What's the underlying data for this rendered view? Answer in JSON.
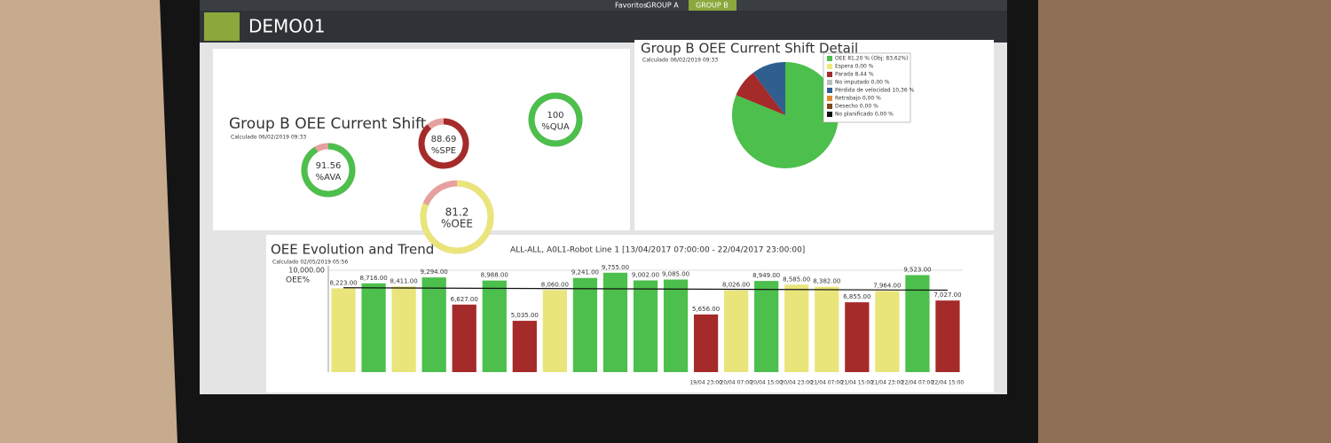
{
  "tabs": [
    "Favoritos",
    "GROUP A",
    "GROUP B"
  ],
  "header": {
    "title": "DEMO01"
  },
  "gauge_panel": {
    "title": "Group B OEE Current Shift",
    "subtitle": "Calculado 06/02/2019 09:33",
    "gauges": [
      {
        "value": 91.56,
        "label": "%AVA",
        "color": "#4cbf4c"
      },
      {
        "value": 88.69,
        "label": "%SPE",
        "color": "#a52a2a"
      },
      {
        "value": 100,
        "label": "%QUA",
        "color": "#4cbf4c"
      },
      {
        "value": 81.2,
        "label": "%OEE",
        "color": "#e9e57a"
      }
    ]
  },
  "pie_panel": {
    "title": "Group B OEE Current Shift Detail",
    "subtitle": "Calculado 06/02/2019 09:33",
    "slices": [
      {
        "name": "OEE 81,20 % (Obj: 83,62%)",
        "value": 81.2,
        "color": "#4cbf4c"
      },
      {
        "name": "Espera 0,00 %",
        "value": 0,
        "color": "#f0ea78"
      },
      {
        "name": "Parada 8,44 %",
        "value": 8.44,
        "color": "#a52a2a"
      },
      {
        "name": "No imputado 0,00 %",
        "value": 0,
        "color": "#bdbdbd"
      },
      {
        "name": "Pérdida de velocidad 10,36 %",
        "value": 10.36,
        "color": "#2f5f8f"
      },
      {
        "name": "Retrabajo 0,00 %",
        "value": 0,
        "color": "#e08a2a"
      },
      {
        "name": "Desecho 0,00 %",
        "value": 0,
        "color": "#7a4a1a"
      },
      {
        "name": "No planificado 0,00 %",
        "value": 0,
        "color": "#111111"
      }
    ]
  },
  "bar_panel": {
    "title": "OEE Evolution and Trend",
    "subtitle": "Calculado 02/05/2019 05:56",
    "caption": "ALL-ALL, A0L1-Robot Line 1  [13/04/2017 07:00:00 - 22/04/2017 23:00:00]",
    "y_label": "OEE%",
    "categories": [
      null,
      null,
      null,
      null,
      null,
      null,
      null,
      null,
      null,
      null,
      null,
      null,
      "19/04 23:00",
      "20/04 07:00",
      "20/04 15:00",
      "20/04 23:00",
      "21/04 07:00",
      "21/04 15:00",
      "21/04 23:00",
      "22/04 07:00",
      "22/04 15:00"
    ],
    "values": [
      8223,
      8716,
      8411,
      9294,
      6627,
      8988,
      5035,
      8060,
      9241,
      9755,
      9002,
      9085,
      5656,
      8026,
      8949,
      8585,
      8382,
      6855,
      7964,
      9523,
      7027
    ],
    "value_labels": [
      "8,223.00",
      "8,716.00",
      "8,411.00",
      "9,294.00",
      "6,627.00",
      "8,988.00",
      "5,035.00",
      "8,060.00",
      "9,241.00",
      "9,755.00",
      "9,002.00",
      "9,085.00",
      "5,656.00",
      "8,026.00",
      "8,949.00",
      "8,585.00",
      "8,382.00",
      "6,855.00",
      "7,964.00",
      "9,523.00",
      "7,027.00"
    ],
    "colors": [
      "#e9e57a",
      "#4cbf4c",
      "#e9e57a",
      "#4cbf4c",
      "#a52a2a",
      "#4cbf4c",
      "#a52a2a",
      "#e9e57a",
      "#4cbf4c",
      "#4cbf4c",
      "#4cbf4c",
      "#4cbf4c",
      "#a52a2a",
      "#e9e57a",
      "#4cbf4c",
      "#e9e57a",
      "#e9e57a",
      "#a52a2a",
      "#e9e57a",
      "#4cbf4c",
      "#a52a2a"
    ],
    "ylim": [
      0,
      10000
    ],
    "yticks": [
      {
        "value": 10000,
        "label": "10,000.00"
      }
    ]
  }
}
